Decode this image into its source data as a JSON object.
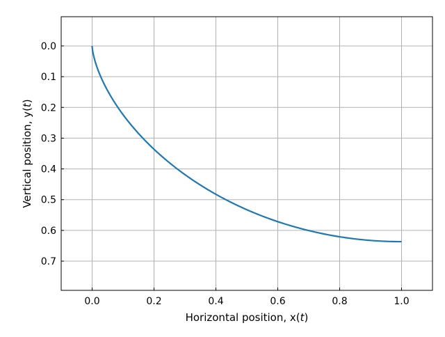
{
  "chart_data": {
    "type": "line",
    "title": "",
    "xlabel": {
      "text": "Horizontal position, ",
      "math_prefix": "x(",
      "math_var": "t",
      "math_suffix": ")"
    },
    "ylabel": {
      "text": "Vertical position, ",
      "math_prefix": "y(",
      "math_var": "t",
      "math_suffix": ")"
    },
    "xlim": [
      -0.1,
      1.1
    ],
    "ylim": [
      0.795,
      -0.095
    ],
    "y_inverted": true,
    "grid": true,
    "legend": "none",
    "x_ticks": [
      0.0,
      0.2,
      0.4,
      0.6,
      0.8,
      1.0
    ],
    "x_tick_labels": [
      "0.0",
      "0.2",
      "0.4",
      "0.6",
      "0.8",
      "1.0"
    ],
    "y_ticks": [
      0.0,
      0.1,
      0.2,
      0.3,
      0.4,
      0.5,
      0.6,
      0.7
    ],
    "y_tick_labels": [
      "0.0",
      "0.1",
      "0.2",
      "0.3",
      "0.4",
      "0.5",
      "0.6",
      "0.7"
    ],
    "series": [
      {
        "color": "#1f77b4",
        "x": [
          0.0,
          1.3e-05,
          0.0001,
          0.0004,
          0.0013,
          0.0033,
          0.0067,
          0.0121,
          0.0198,
          0.0303,
          0.0439,
          0.0606,
          0.0811,
          0.1051,
          0.1327,
          0.1639,
          0.1986,
          0.2366,
          0.2778,
          0.3218,
          0.3683,
          0.4171,
          0.4677,
          0.5199,
          0.573,
          0.6267,
          0.6807,
          0.7343,
          0.7871,
          0.8386,
          0.8885,
          0.9361,
          0.9811,
          1.0
        ],
        "y": [
          0.0,
          0.0016,
          0.0063,
          0.014,
          0.0247,
          0.0382,
          0.0544,
          0.0732,
          0.0943,
          0.1176,
          0.1429,
          0.17,
          0.1985,
          0.2283,
          0.2591,
          0.2906,
          0.3225,
          0.3546,
          0.3865,
          0.418,
          0.4488,
          0.4787,
          0.5073,
          0.5344,
          0.5597,
          0.583,
          0.604,
          0.6226,
          0.6386,
          0.6518,
          0.662,
          0.6693,
          0.6734,
          0.6366
        ]
      }
    ]
  }
}
